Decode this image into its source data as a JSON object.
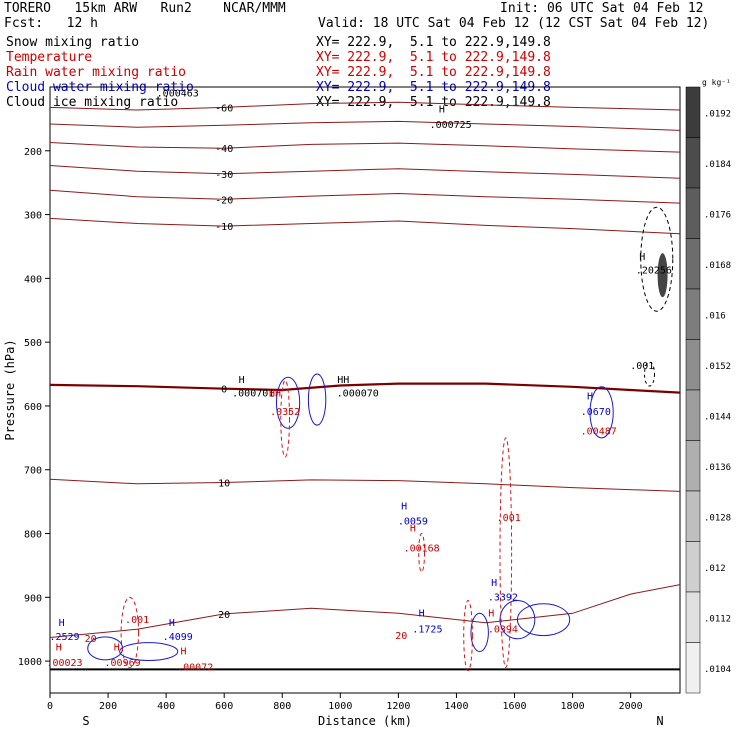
{
  "header": {
    "model": "TORERO   15km ARW   Run2    NCAR/MMM",
    "init": "Init: 06 UTC Sat 04 Feb 12",
    "fcst": "Fcst:   12 h",
    "valid": "Valid: 18 UTC Sat 04 Feb 12 (12 CST Sat 04 Feb 12)"
  },
  "fields": [
    {
      "name": "Snow mixing ratio",
      "color": "#000000",
      "xy": "XY= 222.9,  5.1 to 222.9,149.8"
    },
    {
      "name": "Temperature",
      "color": "#cc0000",
      "xy": "XY= 222.9,  5.1 to 222.9,149.8"
    },
    {
      "name": "Rain water mixing ratio",
      "color": "#cc0000",
      "xy": "XY= 222.9,  5.1 to 222.9,149.8"
    },
    {
      "name": "Cloud water mixing ratio",
      "color": "#0000cc",
      "xy": "XY= 222.9,  5.1 to 222.9,149.8"
    },
    {
      "name": "Cloud ice mixing ratio",
      "color": "#000000",
      "xy": "XY= 222.9,  5.1 to 222.9,149.8"
    }
  ],
  "chart_data": {
    "type": "cross-section",
    "xlabel": "Distance (km)",
    "ylabel": "Pressure (hPa)",
    "x_ticks": [
      0,
      200,
      400,
      600,
      800,
      1000,
      1200,
      1400,
      1600,
      1800,
      2000
    ],
    "y_ticks": [
      200,
      300,
      400,
      500,
      600,
      700,
      800,
      900,
      1000
    ],
    "xlim": [
      0,
      2170
    ],
    "ylim": [
      100,
      1050
    ],
    "left_end": "S",
    "right_end": "N",
    "temperature_contours": [
      {
        "value": -60,
        "label": "-60",
        "points": [
          [
            0,
            132
          ],
          [
            300,
            136
          ],
          [
            600,
            132
          ],
          [
            900,
            126
          ],
          [
            1200,
            124
          ],
          [
            1500,
            128
          ],
          [
            1800,
            132
          ],
          [
            2170,
            136
          ]
        ]
      },
      {
        "value": -50,
        "label": "",
        "points": [
          [
            0,
            158
          ],
          [
            300,
            163
          ],
          [
            600,
            160
          ],
          [
            900,
            156
          ],
          [
            1200,
            154
          ],
          [
            1500,
            158
          ],
          [
            1800,
            162
          ],
          [
            2170,
            168
          ]
        ]
      },
      {
        "value": -40,
        "label": "-40",
        "points": [
          [
            0,
            187
          ],
          [
            300,
            194
          ],
          [
            600,
            196
          ],
          [
            900,
            190
          ],
          [
            1200,
            188
          ],
          [
            1500,
            192
          ],
          [
            1800,
            197
          ],
          [
            2170,
            202
          ]
        ]
      },
      {
        "value": -30,
        "label": "-30",
        "points": [
          [
            0,
            223
          ],
          [
            300,
            232
          ],
          [
            600,
            236
          ],
          [
            900,
            232
          ],
          [
            1200,
            228
          ],
          [
            1500,
            233
          ],
          [
            1800,
            237
          ],
          [
            2170,
            243
          ]
        ]
      },
      {
        "value": -20,
        "label": "-20",
        "points": [
          [
            0,
            262
          ],
          [
            300,
            272
          ],
          [
            600,
            276
          ],
          [
            900,
            271
          ],
          [
            1200,
            267
          ],
          [
            1500,
            272
          ],
          [
            1800,
            276
          ],
          [
            2170,
            282
          ]
        ]
      },
      {
        "value": -10,
        "label": "-10",
        "points": [
          [
            0,
            306
          ],
          [
            300,
            314
          ],
          [
            600,
            318
          ],
          [
            900,
            314
          ],
          [
            1200,
            310
          ],
          [
            1500,
            317
          ],
          [
            1800,
            322
          ],
          [
            2170,
            330
          ]
        ]
      },
      {
        "value": 0,
        "label": "0",
        "points": [
          [
            0,
            567
          ],
          [
            300,
            569
          ],
          [
            600,
            573
          ],
          [
            800,
            575
          ],
          [
            1000,
            568
          ],
          [
            1200,
            565
          ],
          [
            1500,
            565
          ],
          [
            1800,
            570
          ],
          [
            2000,
            575
          ],
          [
            2170,
            579
          ]
        ]
      },
      {
        "value": 10,
        "label": "10",
        "points": [
          [
            0,
            715
          ],
          [
            300,
            722
          ],
          [
            600,
            720
          ],
          [
            900,
            716
          ],
          [
            1200,
            717
          ],
          [
            1500,
            722
          ],
          [
            1800,
            728
          ],
          [
            2170,
            734
          ]
        ]
      },
      {
        "value": 20,
        "label": "20",
        "points": [
          [
            0,
            963
          ],
          [
            300,
            950
          ],
          [
            600,
            926
          ],
          [
            900,
            917
          ],
          [
            1200,
            925
          ],
          [
            1500,
            940
          ],
          [
            1800,
            925
          ],
          [
            2000,
            895
          ],
          [
            2170,
            880
          ]
        ]
      }
    ],
    "data_labels": [
      {
        "text": ".000463",
        "x": 440,
        "y": 115,
        "color": "#000000"
      },
      {
        "text": "H",
        "x": 1350,
        "y": 140,
        "color": "#000000"
      },
      {
        "text": ".000725",
        "x": 1380,
        "y": 164,
        "color": "#000000"
      },
      {
        "text": "H",
        "x": 2040,
        "y": 371,
        "color": "#000000"
      },
      {
        "text": ".20256",
        "x": 2080,
        "y": 392,
        "color": "#000000"
      },
      {
        "text": ".001",
        "x": 2040,
        "y": 542,
        "color": "#000000"
      },
      {
        "text": "H",
        "x": 660,
        "y": 564,
        "color": "#000000"
      },
      {
        "text": ".000701",
        "x": 700,
        "y": 585,
        "color": "#000000"
      },
      {
        "text": "HH",
        "x": 1010,
        "y": 564,
        "color": "#000000"
      },
      {
        "text": ".000070",
        "x": 1060,
        "y": 585,
        "color": "#000000"
      },
      {
        "text": "HH",
        "x": 775,
        "y": 585,
        "color": "#cc0000"
      },
      {
        "text": ".0352",
        "x": 810,
        "y": 614,
        "color": "#cc0000"
      },
      {
        "text": "H",
        "x": 1860,
        "y": 590,
        "color": "#0000cc"
      },
      {
        "text": ".0670",
        "x": 1880,
        "y": 614,
        "color": "#0000cc"
      },
      {
        "text": ".00487",
        "x": 1890,
        "y": 645,
        "color": "#cc0000"
      },
      {
        "text": "H",
        "x": 1220,
        "y": 762,
        "color": "#0000cc"
      },
      {
        "text": ".0059",
        "x": 1250,
        "y": 786,
        "color": "#0000cc"
      },
      {
        "text": "H",
        "x": 1250,
        "y": 797,
        "color": "#cc0000"
      },
      {
        "text": ".00168",
        "x": 1280,
        "y": 828,
        "color": "#cc0000"
      },
      {
        "text": ".001",
        "x": 1580,
        "y": 780,
        "color": "#cc0000"
      },
      {
        "text": "H",
        "x": 1530,
        "y": 882,
        "color": "#0000cc"
      },
      {
        "text": ".3392",
        "x": 1560,
        "y": 905,
        "color": "#0000cc"
      },
      {
        "text": "H",
        "x": 1520,
        "y": 930,
        "color": "#cc0000"
      },
      {
        "text": ".0394",
        "x": 1560,
        "y": 955,
        "color": "#cc0000"
      },
      {
        "text": "H",
        "x": 1280,
        "y": 930,
        "color": "#0000cc"
      },
      {
        "text": ".1725",
        "x": 1300,
        "y": 955,
        "color": "#0000cc"
      },
      {
        "text": ".001",
        "x": 300,
        "y": 940,
        "color": "#cc0000"
      },
      {
        "text": "H",
        "x": 40,
        "y": 945,
        "color": "#0000cc"
      },
      {
        "text": ".2529",
        "x": 50,
        "y": 967,
        "color": "#0000cc"
      },
      {
        "text": "H",
        "x": 30,
        "y": 983,
        "color": "#cc0000"
      },
      {
        "text": ".00023",
        "x": 50,
        "y": 1008,
        "color": "#cc0000"
      },
      {
        "text": "H",
        "x": 230,
        "y": 983,
        "color": "#cc0000"
      },
      {
        "text": ".00969",
        "x": 250,
        "y": 1008,
        "color": "#cc0000"
      },
      {
        "text": "H",
        "x": 420,
        "y": 945,
        "color": "#0000cc"
      },
      {
        "text": ".4099",
        "x": 440,
        "y": 967,
        "color": "#0000cc"
      },
      {
        "text": "H",
        "x": 460,
        "y": 990,
        "color": "#cc0000"
      },
      {
        "text": ".00072",
        "x": 500,
        "y": 1015,
        "color": "#cc0000"
      },
      {
        "text": "20",
        "x": 140,
        "y": 970,
        "color": "#cc0000"
      },
      {
        "text": "20",
        "x": 1210,
        "y": 965,
        "color": "#cc0000"
      }
    ],
    "colorbar": {
      "unit": "g kg⁻¹",
      "ticks": [
        ".0192",
        ".0184",
        ".0176",
        ".0168",
        ".016",
        ".0152",
        ".0144",
        ".0136",
        ".0128",
        ".012",
        ".0112",
        ".0104"
      ]
    }
  }
}
